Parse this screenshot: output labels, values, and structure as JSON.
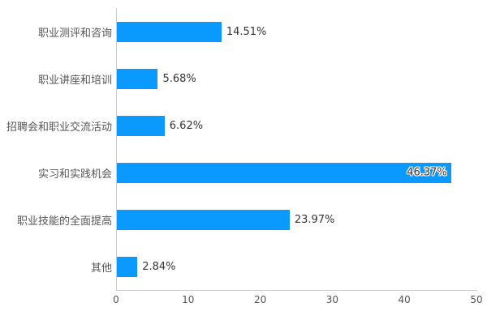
{
  "chart_data": {
    "type": "bar",
    "orientation": "horizontal",
    "title": "",
    "categories": [
      "职业测评和咨询",
      "职业讲座和培训",
      "招聘会和职业交流活动",
      "实习和实践机会",
      "职业技能的全面提高",
      "其他"
    ],
    "values": [
      14.51,
      5.68,
      6.62,
      46.37,
      23.97,
      2.84
    ],
    "value_labels": [
      "14.51%",
      "5.68%",
      "6.62%",
      "46.37%",
      "23.97%",
      "2.84%"
    ],
    "value_label_position": [
      "outside",
      "outside",
      "outside",
      "inside",
      "outside",
      "outside"
    ],
    "xlim": [
      0,
      50
    ],
    "x_ticks": [
      "0",
      "10",
      "20",
      "30",
      "40",
      "50"
    ],
    "grid": false,
    "legend": false,
    "colors": {
      "bar": "#0a99ff",
      "category_label": "#555555",
      "value_label": "#333333",
      "tick_label": "#555555",
      "axis_line": "#cccccc",
      "background": "#ffffff"
    }
  }
}
